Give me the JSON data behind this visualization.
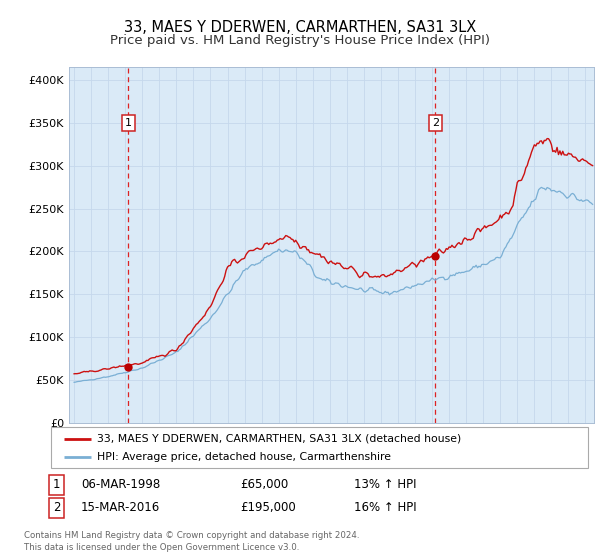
{
  "title": "33, MAES Y DDERWEN, CARMARTHEN, SA31 3LX",
  "subtitle": "Price paid vs. HM Land Registry's House Price Index (HPI)",
  "title_fontsize": 10.5,
  "subtitle_fontsize": 9.5,
  "bg_color": "#daeaf7",
  "red_line_color": "#cc1111",
  "blue_line_color": "#7aafd4",
  "sale1_date": 1998.18,
  "sale1_price": 65000,
  "sale2_date": 2016.2,
  "sale2_price": 195000,
  "marker_color": "#bb0000",
  "vline_color": "#dd2222",
  "ylabel_ticks": [
    "£0",
    "£50K",
    "£100K",
    "£150K",
    "£200K",
    "£250K",
    "£300K",
    "£350K",
    "£400K"
  ],
  "ylabel_values": [
    0,
    50000,
    100000,
    150000,
    200000,
    250000,
    300000,
    350000,
    400000
  ],
  "xmin": 1994.7,
  "xmax": 2025.5,
  "ymin": 0,
  "ymax": 415000,
  "legend_red": "33, MAES Y DDERWEN, CARMARTHEN, SA31 3LX (detached house)",
  "legend_blue": "HPI: Average price, detached house, Carmarthenshire",
  "table_row1": [
    "1",
    "06-MAR-1998",
    "£65,000",
    "13% ↑ HPI"
  ],
  "table_row2": [
    "2",
    "15-MAR-2016",
    "£195,000",
    "16% ↑ HPI"
  ],
  "footnote1": "Contains HM Land Registry data © Crown copyright and database right 2024.",
  "footnote2": "This data is licensed under the Open Government Licence v3.0."
}
